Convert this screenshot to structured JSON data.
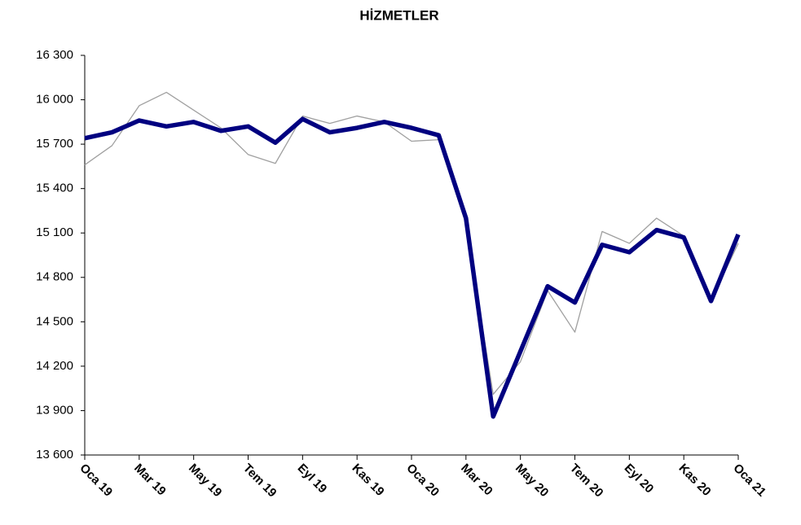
{
  "chart_data": {
    "type": "line",
    "title": "HİZMETLER",
    "categories": [
      "Oca 19",
      null,
      "Mar 19",
      null,
      "May 19",
      null,
      "Tem 19",
      null,
      "Eyl 19",
      null,
      "Kas 19",
      null,
      "Oca 20",
      null,
      "Mar 20",
      null,
      "May 20",
      null,
      "Tem 20",
      null,
      "Eyl 20",
      null,
      "Kas 20",
      null,
      "Oca 21"
    ],
    "series": [
      {
        "color": "#a0a0a0",
        "values": [
          15560,
          15690,
          15960,
          16050,
          15930,
          15810,
          15630,
          15570,
          15890,
          15840,
          15890,
          15850,
          15720,
          15730,
          15160,
          14010,
          14230,
          14710,
          14430,
          15110,
          15030,
          15200,
          15080,
          14640,
          15030
        ]
      },
      {
        "color": "#000080",
        "values": [
          15740,
          15780,
          15860,
          15820,
          15850,
          15790,
          15820,
          15710,
          15870,
          15780,
          15810,
          15850,
          15810,
          15760,
          15200,
          13860,
          14300,
          14740,
          14630,
          15020,
          14970,
          15120,
          15070,
          14640,
          15090
        ]
      }
    ],
    "ylim": [
      13600,
      16300
    ],
    "yticks": [
      {
        "value": 13600,
        "label": "13 600"
      },
      {
        "value": 13900,
        "label": "13 900"
      },
      {
        "value": 14200,
        "label": "14 200"
      },
      {
        "value": 14500,
        "label": "14 500"
      },
      {
        "value": 14800,
        "label": "14 800"
      },
      {
        "value": 15100,
        "label": "15 100"
      },
      {
        "value": 15400,
        "label": "15 400"
      },
      {
        "value": 15700,
        "label": "15 700"
      },
      {
        "value": 16000,
        "label": "16 000"
      },
      {
        "value": 16300,
        "label": "16 300"
      }
    ],
    "grid": false
  }
}
